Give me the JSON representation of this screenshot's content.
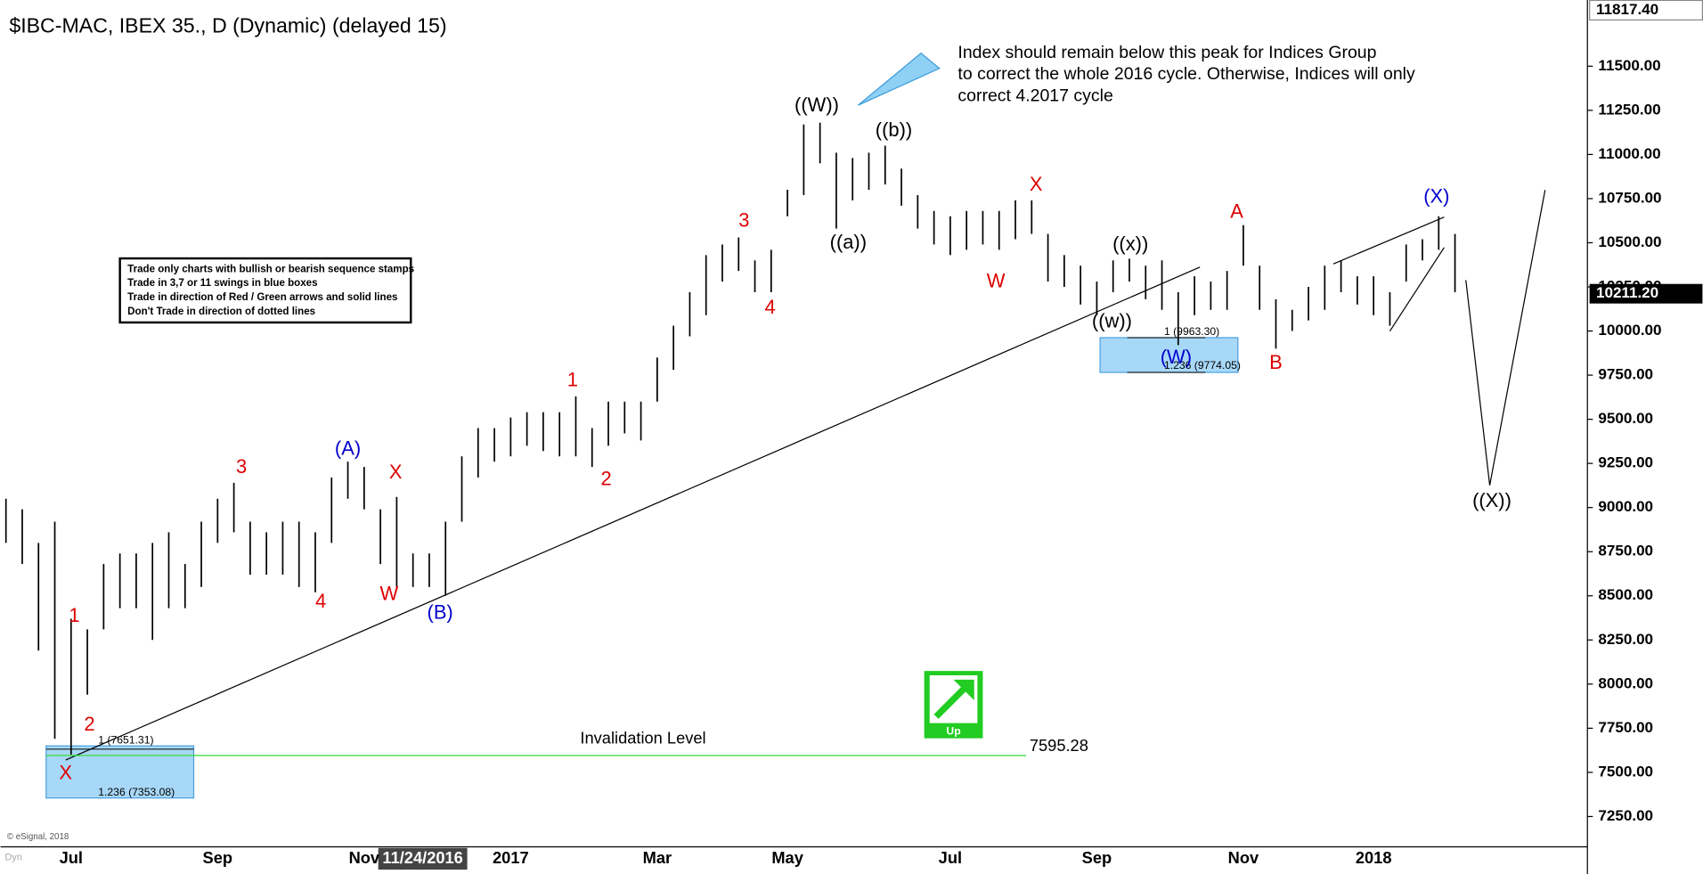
{
  "chart_data": {
    "type": "ohlc",
    "title": "$IBC-MAC, IBEX 35., D (Dynamic) (delayed 15)",
    "categories": [
      null,
      null,
      null,
      null,
      "Jul",
      null,
      null,
      null,
      null,
      null,
      null,
      null,
      null,
      "Sep",
      null,
      null,
      null,
      null,
      null,
      null,
      null,
      null,
      "Nov",
      null,
      null,
      null,
      null,
      null,
      null,
      null,
      null,
      "2017",
      null,
      null,
      null,
      null,
      null,
      null,
      null,
      null,
      "Mar",
      null,
      null,
      null,
      null,
      null,
      null,
      null,
      "May",
      null,
      null,
      null,
      null,
      null,
      null,
      null,
      null,
      null,
      "Jul",
      null,
      null,
      null,
      null,
      null,
      null,
      null,
      null,
      "Sep",
      null,
      null,
      null,
      null,
      null,
      null,
      null,
      null,
      "Nov",
      null,
      null,
      null,
      null,
      null,
      null,
      null,
      "2018",
      null,
      null,
      null,
      null,
      null
    ],
    "high": [
      9050,
      8990,
      8800,
      8920,
      8370,
      8310,
      8680,
      8740,
      8740,
      8800,
      8860,
      8680,
      8920,
      9050,
      9140,
      8920,
      8860,
      8920,
      8920,
      8860,
      9170,
      9260,
      9230,
      8990,
      9060,
      8740,
      8740,
      8920,
      9290,
      9450,
      9450,
      9510,
      9540,
      9540,
      9540,
      9630,
      9450,
      9600,
      9600,
      9600,
      9850,
      10030,
      10220,
      10430,
      10490,
      10530,
      10400,
      10460,
      10800,
      11170,
      11180,
      11010,
      10980,
      11010,
      11050,
      10920,
      10770,
      10680,
      10650,
      10680,
      10680,
      10680,
      10740,
      10740,
      10550,
      10430,
      10370,
      10280,
      10400,
      10410,
      10370,
      10400,
      10220,
      10310,
      10280,
      10340,
      10600,
      10370,
      10180,
      10120,
      10250,
      10370,
      10400,
      10310,
      10310,
      10220,
      10490,
      10520,
      10650,
      10550
    ],
    "low": [
      8800,
      8680,
      8190,
      7690,
      7600,
      7940,
      8310,
      8430,
      8430,
      8250,
      8430,
      8430,
      8550,
      8800,
      8860,
      8620,
      8620,
      8620,
      8550,
      8520,
      8800,
      9050,
      8990,
      8680,
      8550,
      8550,
      8550,
      8500,
      8920,
      9170,
      9260,
      9290,
      9350,
      9320,
      9290,
      9290,
      9230,
      9350,
      9420,
      9380,
      9600,
      9780,
      9970,
      10090,
      10280,
      10340,
      10220,
      10220,
      10650,
      10770,
      10950,
      10580,
      10740,
      10800,
      10830,
      10710,
      10580,
      10490,
      10430,
      10460,
      10490,
      10460,
      10520,
      10550,
      10280,
      10250,
      10150,
      10090,
      10220,
      10280,
      10180,
      10120,
      9920,
      10090,
      10120,
      10120,
      10370,
      10120,
      9900,
      10000,
      10060,
      10120,
      10220,
      10150,
      10090,
      10030,
      10280,
      10400,
      10460,
      10220
    ],
    "bar_color": "#000000",
    "ylim": [
      7078,
      11875
    ],
    "yticks": [
      {
        "value": 7250,
        "label": "7250.00"
      },
      {
        "value": 7500,
        "label": "7500.00"
      },
      {
        "value": 7750,
        "label": "7750.00"
      },
      {
        "value": 8000,
        "label": "8000.00"
      },
      {
        "value": 8250,
        "label": "8250.00"
      },
      {
        "value": 8500,
        "label": "8500.00"
      },
      {
        "value": 8750,
        "label": "8750.00"
      },
      {
        "value": 9000,
        "label": "9000.00"
      },
      {
        "value": 9250,
        "label": "9250.00"
      },
      {
        "value": 9500,
        "label": "9500.00"
      },
      {
        "value": 9750,
        "label": "9750.00"
      },
      {
        "value": 10000,
        "label": "10000.00"
      },
      {
        "value": 10250,
        "label": "10250.00"
      },
      {
        "value": 10500,
        "label": "10500.00"
      },
      {
        "value": 10750,
        "label": "10750.00"
      },
      {
        "value": 11000,
        "label": "11000.00"
      },
      {
        "value": 11250,
        "label": "11250.00"
      },
      {
        "value": 11500,
        "label": "11500.00"
      }
    ],
    "high_price": {
      "value": 11817.4,
      "label": "11817.40"
    },
    "last_price": {
      "value": 10211.2,
      "label": "10211.20"
    },
    "invalidation": {
      "label": "Invalidation Level",
      "value": 7595.28,
      "color": "#33dd33"
    },
    "cursor_date": "11/24/2016",
    "fib_labels": [
      "1 (7651.31)",
      "1.236 (7353.08)",
      "1 (9963.30)",
      "1.236 (9774.05)"
    ],
    "wave_labels": [
      {
        "text": "((W))",
        "color": "#000000"
      },
      {
        "text": "((b))",
        "color": "#000000"
      },
      {
        "text": "((a))",
        "color": "#000000"
      },
      {
        "text": "((x))",
        "color": "#000000"
      },
      {
        "text": "((w))",
        "color": "#000000"
      },
      {
        "text": "((X))",
        "color": "#000000"
      },
      {
        "text": "(A)",
        "color": "#0000cc"
      },
      {
        "text": "(B)",
        "color": "#0000cc"
      },
      {
        "text": "(W)",
        "color": "#0000cc"
      },
      {
        "text": "(X)",
        "color": "#0000cc"
      },
      {
        "text": "1",
        "color": "#dd0000"
      },
      {
        "text": "2",
        "color": "#dd0000"
      },
      {
        "text": "X",
        "color": "#dd0000"
      },
      {
        "text": "3",
        "color": "#dd0000"
      },
      {
        "text": "X",
        "color": "#dd0000"
      },
      {
        "text": "W",
        "color": "#dd0000"
      },
      {
        "text": "4",
        "color": "#dd0000"
      },
      {
        "text": "1",
        "color": "#dd0000"
      },
      {
        "text": "2",
        "color": "#dd0000"
      },
      {
        "text": "3",
        "color": "#dd0000"
      },
      {
        "text": "4",
        "color": "#dd0000"
      },
      {
        "text": "W",
        "color": "#dd0000"
      },
      {
        "text": "X",
        "color": "#dd0000"
      },
      {
        "text": "A",
        "color": "#dd0000"
      },
      {
        "text": "B",
        "color": "#dd0000"
      }
    ],
    "rules_box": [
      "Trade only charts with bullish or bearish sequence stamps",
      "Trade in 3,7 or 11 swings in blue boxes",
      "Trade in direction of Red / Green arrows and solid lines",
      "Don't Trade in direction of dotted lines"
    ],
    "comment": [
      "Index should remain below this peak for Indices Group",
      "to correct the whole 2016 cycle. Otherwise, Indices will only",
      "correct 4.2017 cycle"
    ],
    "stamp": "Up",
    "copyright": "© eSignal, 2018",
    "corner_label": "Dyn"
  }
}
